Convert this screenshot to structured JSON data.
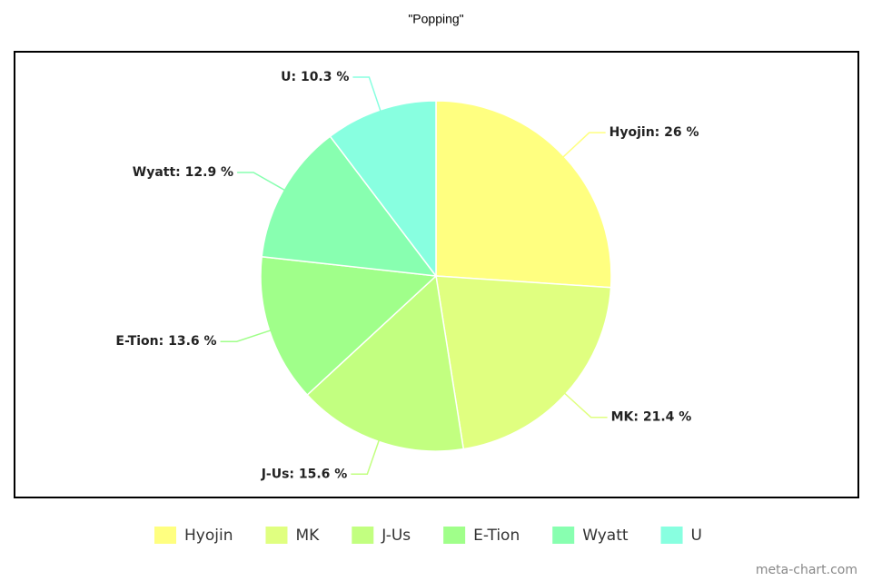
{
  "chart_data": {
    "type": "pie",
    "title": "\"Popping\"",
    "categories": [
      "Hyojin",
      "MK",
      "J-Us",
      "E-Tion",
      "Wyatt",
      "U"
    ],
    "values": [
      26,
      21.4,
      15.6,
      13.6,
      12.9,
      10.3
    ],
    "value_labels": [
      "Hyojin: 26 %",
      "MK: 21.4 %",
      "J-Us: 15.6 %",
      "E-Tion: 13.6 %",
      "Wyatt: 12.9 %",
      "U: 10.3 %"
    ],
    "colors": [
      "#ffff80",
      "#e0ff80",
      "#c2ff80",
      "#a0ff8a",
      "#88ffb0",
      "#88ffe0"
    ],
    "legend": "bottom",
    "credit": "meta-chart.com"
  }
}
